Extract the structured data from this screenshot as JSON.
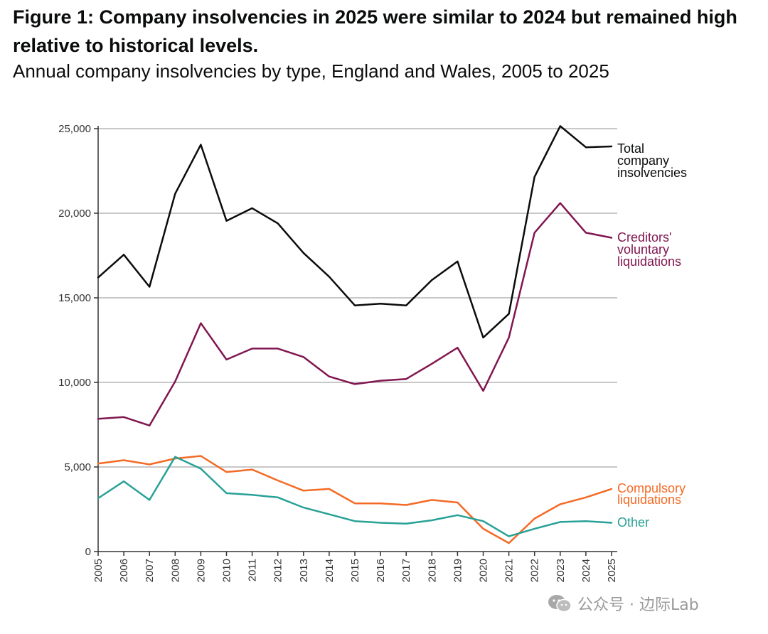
{
  "title": "Figure 1: Company insolvencies in 2025 were similar to 2024 but remained high relative to historical levels.",
  "subtitle": "Annual company insolvencies by type, England and Wales, 2005 to 2025",
  "watermark": "公众号 · 边际Lab",
  "chart_data": {
    "type": "line",
    "title": "Figure 1: Company insolvencies in 2025 were similar to 2024 but remained high relative to historical levels.",
    "subtitle": "Annual company insolvencies by type, England and Wales, 2005 to 2025",
    "xlabel": "",
    "ylabel": "",
    "ylim": [
      0,
      25000
    ],
    "yticks": [
      0,
      5000,
      10000,
      15000,
      20000,
      25000
    ],
    "ytick_labels": [
      "0",
      "5,000",
      "10,000",
      "15,000",
      "20,000",
      "25,000"
    ],
    "grid": "horizontal",
    "x": [
      "2005",
      "2006",
      "2007",
      "2008",
      "2009",
      "2010",
      "2011",
      "2012",
      "2013",
      "2014",
      "2015",
      "2016",
      "2017",
      "2018",
      "2019",
      "2020",
      "2021",
      "2022",
      "2023",
      "2024",
      "2025"
    ],
    "series": [
      {
        "name": "Total company insolvencies",
        "label_lines": [
          "Total",
          "company",
          "insolvencies"
        ],
        "color": "#0b0c0c",
        "values": [
          16200,
          17550,
          15650,
          21150,
          24050,
          19550,
          20300,
          19400,
          17650,
          16250,
          14550,
          14650,
          14550,
          16050,
          17150,
          12650,
          14050,
          22150,
          25150,
          23900,
          23950
        ]
      },
      {
        "name": "Creditors' voluntary liquidations",
        "label_lines": [
          "Creditors'",
          "voluntary",
          "liquidations"
        ],
        "color": "#801650",
        "values": [
          7850,
          7950,
          7450,
          10050,
          13500,
          11350,
          12000,
          12000,
          11500,
          10350,
          9900,
          10100,
          10200,
          11100,
          12050,
          9500,
          12650,
          18850,
          20600,
          18850,
          18550
        ]
      },
      {
        "name": "Compulsory liquidations",
        "label_lines": [
          "Compulsory",
          "liquidations"
        ],
        "color": "#f46a25",
        "values": [
          5200,
          5400,
          5150,
          5500,
          5650,
          4700,
          4850,
          4200,
          3600,
          3700,
          2850,
          2850,
          2750,
          3050,
          2900,
          1350,
          500,
          1950,
          2800,
          3200,
          3700
        ]
      },
      {
        "name": "Other",
        "label_lines": [
          "Other"
        ],
        "color": "#28a197",
        "values": [
          3150,
          4150,
          3050,
          5600,
          4900,
          3450,
          3350,
          3200,
          2600,
          2200,
          1800,
          1700,
          1650,
          1850,
          2150,
          1800,
          900,
          1350,
          1750,
          1800,
          1700
        ]
      }
    ]
  }
}
